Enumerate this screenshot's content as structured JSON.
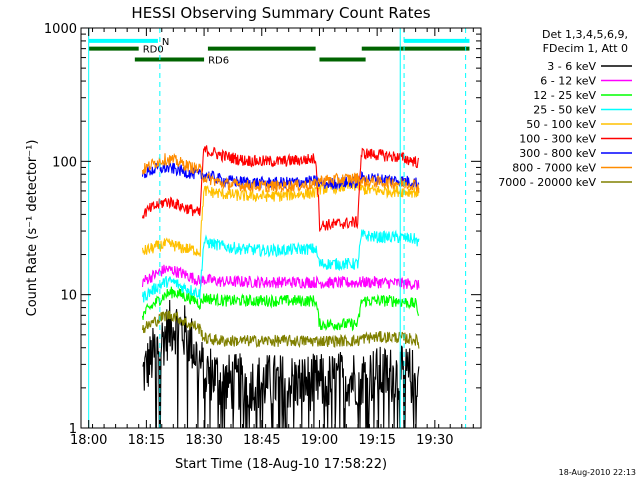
{
  "chart_data": {
    "type": "line",
    "title": "HESSI Observing Summary Count Rates",
    "xlabel": "Start Time (18-Aug-10 17:58:22)",
    "ylabel": "Count Rate (s⁻¹ detector⁻¹)",
    "x_ticks": [
      "18:00",
      "18:15",
      "18:30",
      "18:45",
      "19:00",
      "19:15",
      "19:30"
    ],
    "x_tick_minutes": [
      0,
      15,
      30,
      45,
      60,
      75,
      90
    ],
    "xlim_minutes": [
      -2,
      102
    ],
    "y_ticks": [
      "1",
      "10",
      "100",
      "1000"
    ],
    "y_tick_values": [
      1,
      10,
      100,
      1000
    ],
    "ylim": [
      1,
      1000
    ],
    "yscale": "log",
    "legend_header": [
      "Det 1,3,4,5,6,9,",
      "FDecim 1, Att 0"
    ],
    "legend_placement": "right",
    "timestamp": "18-Aug-2010 22:13",
    "flags": [
      {
        "label": "N",
        "color": "#00ffff",
        "level": 800,
        "segments": [
          [
            0,
            18
          ],
          [
            82,
            99
          ]
        ]
      },
      {
        "label": "RD0",
        "color": "#006400",
        "level": 700,
        "segments": [
          [
            0,
            13
          ],
          [
            31,
            59
          ],
          [
            71,
            99
          ]
        ]
      },
      {
        "label": "RD6",
        "color": "#006400",
        "level": 580,
        "segments": [
          [
            12,
            30
          ],
          [
            60,
            72
          ]
        ]
      }
    ],
    "vlines": [
      {
        "x": 0,
        "color": "#00ffff",
        "dashed": false
      },
      {
        "x": 18.5,
        "color": "#00ffff",
        "dashed": true
      },
      {
        "x": 81,
        "color": "#00ffff",
        "dashed": false
      },
      {
        "x": 82,
        "color": "#00ffff",
        "dashed": true
      },
      {
        "x": 98,
        "color": "#00ffff",
        "dashed": true
      }
    ],
    "data_x_range": [
      14,
      86
    ],
    "series": [
      {
        "name": "3 - 6 keV",
        "color": "#000000",
        "x": [
          14,
          16,
          18,
          20,
          22,
          24,
          26,
          28,
          30,
          32,
          35,
          40,
          45,
          50,
          55,
          60,
          62,
          65,
          70,
          75,
          80,
          83,
          86
        ],
        "values": [
          2.5,
          3.2,
          4.0,
          5.0,
          6.0,
          5.5,
          4.8,
          3.5,
          2.6,
          2.6,
          2.2,
          2.2,
          2.2,
          2.2,
          2.2,
          2.2,
          2.2,
          2.3,
          2.4,
          2.5,
          2.5,
          2.5,
          2.3
        ]
      },
      {
        "name": "6 - 12 keV",
        "color": "#ff00ff",
        "x": [
          14,
          16,
          18,
          20,
          22,
          24,
          26,
          28,
          29,
          30,
          35,
          40,
          45,
          50,
          55,
          59,
          60,
          65,
          70,
          71,
          75,
          80,
          85,
          86
        ],
        "values": [
          12.5,
          13.5,
          14.5,
          15.5,
          15.2,
          14.5,
          13.8,
          13.0,
          12.5,
          13.0,
          12.5,
          12.5,
          12.4,
          12.4,
          12.4,
          12.4,
          12.3,
          12.3,
          12.3,
          12.4,
          12.4,
          12.2,
          12.0,
          11.5
        ]
      },
      {
        "name": "12 - 25 keV",
        "color": "#00ff00",
        "x": [
          14,
          16,
          18,
          20,
          22,
          24,
          26,
          28,
          29,
          30,
          35,
          40,
          45,
          50,
          55,
          59,
          60,
          65,
          70,
          71,
          75,
          80,
          85,
          86
        ],
        "values": [
          7.0,
          8.0,
          9.0,
          10.0,
          10.5,
          10.0,
          9.5,
          9.0,
          8.5,
          9.5,
          9.0,
          9.0,
          9.0,
          9.0,
          9.0,
          9.0,
          6.0,
          6.0,
          6.0,
          9.0,
          9.0,
          9.0,
          8.5,
          7.0
        ]
      },
      {
        "name": "25 - 50 keV",
        "color": "#00ffff",
        "x": [
          14,
          16,
          18,
          20,
          22,
          24,
          26,
          28,
          29,
          30,
          35,
          40,
          45,
          50,
          55,
          59,
          60,
          65,
          70,
          71,
          75,
          80,
          85,
          86
        ],
        "values": [
          9.5,
          10.5,
          11.5,
          12.5,
          12.5,
          11.5,
          11.0,
          10.5,
          10.0,
          25.0,
          23.0,
          22.0,
          21.5,
          21.5,
          22.0,
          22.0,
          17.0,
          17.0,
          17.0,
          28.0,
          27.0,
          27.0,
          26.0,
          24.0
        ]
      },
      {
        "name": "50 - 100 keV",
        "color": "#ffc000",
        "x": [
          14,
          16,
          18,
          20,
          22,
          24,
          26,
          28,
          29,
          30,
          35,
          40,
          45,
          50,
          55,
          59,
          60,
          65,
          70,
          71,
          75,
          80,
          85,
          86
        ],
        "values": [
          21.0,
          22.0,
          23.0,
          24.0,
          23.5,
          22.5,
          22.0,
          21.5,
          21.0,
          60.0,
          57.0,
          55.0,
          55.0,
          55.0,
          57.0,
          58.0,
          62.0,
          64.0,
          66.0,
          62.0,
          60.0,
          60.0,
          59.0,
          57.0
        ]
      },
      {
        "name": "100 - 300 keV",
        "color": "#ff0000",
        "x": [
          14,
          16,
          18,
          20,
          22,
          24,
          26,
          28,
          29,
          30,
          35,
          40,
          45,
          50,
          55,
          59,
          60,
          65,
          70,
          71,
          75,
          80,
          85,
          86
        ],
        "values": [
          40.0,
          44.0,
          47.0,
          50.0,
          49.0,
          46.0,
          44.0,
          42.0,
          40.0,
          122.0,
          110.0,
          102.0,
          100.0,
          100.0,
          102.0,
          105.0,
          33.0,
          34.0,
          35.0,
          115.0,
          112.0,
          108.0,
          100.0,
          95.0
        ]
      },
      {
        "name": "300 - 800 keV",
        "color": "#0000ff",
        "x": [
          14,
          16,
          18,
          20,
          22,
          24,
          26,
          28,
          29,
          30,
          35,
          40,
          45,
          50,
          55,
          59,
          60,
          65,
          70,
          71,
          75,
          80,
          85,
          86
        ],
        "values": [
          80.0,
          85.0,
          88.0,
          89.0,
          88.0,
          85.0,
          82.0,
          80.0,
          79.0,
          80.0,
          72.0,
          70.0,
          69.0,
          69.0,
          70.0,
          71.0,
          68.0,
          69.0,
          70.0,
          75.0,
          74.0,
          72.0,
          70.0,
          66.0
        ]
      },
      {
        "name": "800 - 7000 keV",
        "color": "#ff8c00",
        "x": [
          14,
          16,
          18,
          20,
          22,
          24,
          26,
          28,
          29,
          30,
          35,
          40,
          45,
          50,
          55,
          59,
          60,
          65,
          70,
          71,
          75,
          80,
          85,
          86
        ],
        "values": [
          86.0,
          93.0,
          100.0,
          104.0,
          102.0,
          97.0,
          92.0,
          88.0,
          86.0,
          76.0,
          68.0,
          66.0,
          65.0,
          65.0,
          66.0,
          67.0,
          72.0,
          73.0,
          75.0,
          71.0,
          70.0,
          69.0,
          67.0,
          63.0
        ]
      },
      {
        "name": "7000 - 20000 keV",
        "color": "#808000",
        "x": [
          14,
          16,
          18,
          20,
          22,
          24,
          26,
          28,
          29,
          30,
          35,
          40,
          45,
          50,
          55,
          59,
          60,
          65,
          70,
          71,
          75,
          80,
          85,
          86
        ],
        "values": [
          5.5,
          6.0,
          6.5,
          7.0,
          7.0,
          6.5,
          6.0,
          5.8,
          5.5,
          4.7,
          4.5,
          4.5,
          4.5,
          4.5,
          4.5,
          4.5,
          4.5,
          4.5,
          4.5,
          4.7,
          4.8,
          4.8,
          4.6,
          4.2
        ]
      }
    ]
  }
}
